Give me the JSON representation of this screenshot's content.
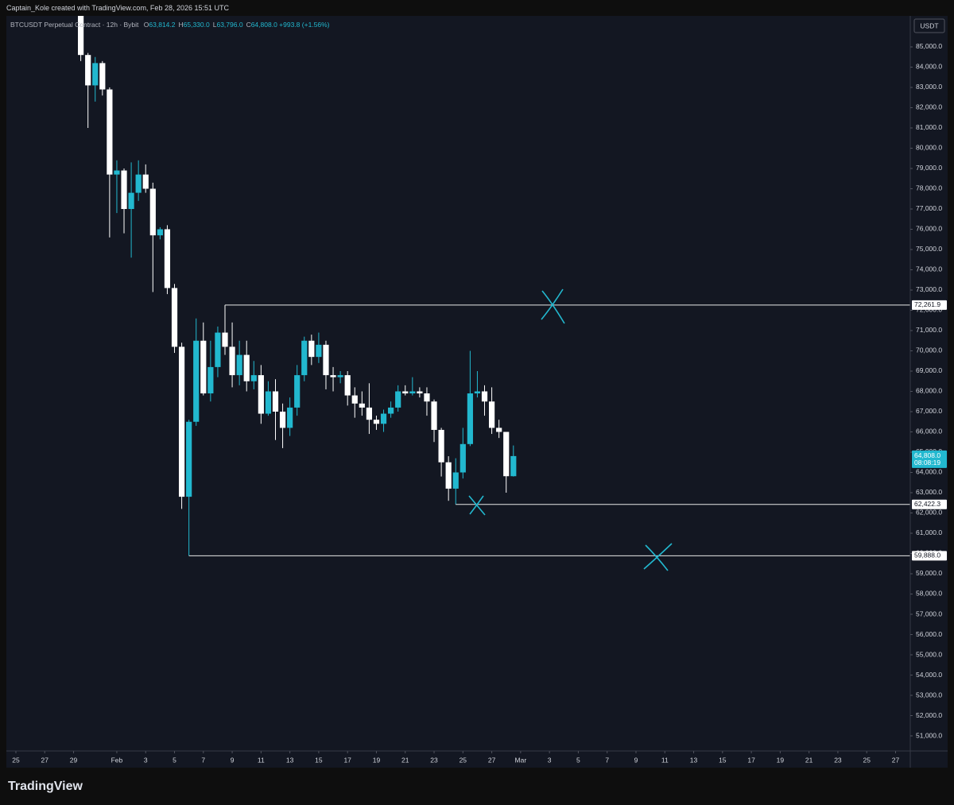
{
  "credit": "Captain_Kole created with TradingView.com, Feb 28, 2026 15:51 UTC",
  "logo": "TradingView",
  "legend": {
    "symbol": "BTCUSDT Perpetual Contract · 12h · Bybit",
    "items": [
      {
        "key": "O",
        "value": "63,814.2"
      },
      {
        "key": "H",
        "value": "65,330.0"
      },
      {
        "key": "L",
        "value": "63,796.0"
      },
      {
        "key": "C",
        "value": "64,808.0"
      }
    ],
    "change": "+993.8 (+1.56%)"
  },
  "chart_data": {
    "type": "candlestick",
    "currency": "USDT",
    "up_color": "#22b8cf",
    "down_color": "#ffffff",
    "background": "#131722",
    "xlim": [
      -1.32,
      124.04
    ],
    "ylim": [
      50255,
      86529
    ],
    "xticks": [
      {
        "value": 0,
        "label": "25"
      },
      {
        "value": 4,
        "label": "27"
      },
      {
        "value": 8,
        "label": "29"
      },
      {
        "value": 14,
        "label": "Feb"
      },
      {
        "value": 18,
        "label": "3"
      },
      {
        "value": 22,
        "label": "5"
      },
      {
        "value": 26,
        "label": "7"
      },
      {
        "value": 30,
        "label": "9"
      },
      {
        "value": 34,
        "label": "11"
      },
      {
        "value": 38,
        "label": "13"
      },
      {
        "value": 42,
        "label": "15"
      },
      {
        "value": 46,
        "label": "17"
      },
      {
        "value": 50,
        "label": "19"
      },
      {
        "value": 54,
        "label": "21"
      },
      {
        "value": 58,
        "label": "23"
      },
      {
        "value": 62,
        "label": "25"
      },
      {
        "value": 66,
        "label": "27"
      },
      {
        "value": 70,
        "label": "Mar"
      },
      {
        "value": 74,
        "label": "3"
      },
      {
        "value": 78,
        "label": "5"
      },
      {
        "value": 82,
        "label": "7"
      },
      {
        "value": 86,
        "label": "9"
      },
      {
        "value": 90,
        "label": "11"
      },
      {
        "value": 94,
        "label": "13"
      },
      {
        "value": 98,
        "label": "15"
      },
      {
        "value": 102,
        "label": "17"
      },
      {
        "value": 106,
        "label": "19"
      },
      {
        "value": 110,
        "label": "21"
      },
      {
        "value": 114,
        "label": "23"
      },
      {
        "value": 118,
        "label": "25"
      },
      {
        "value": 122,
        "label": "27"
      }
    ],
    "yticks": [
      {
        "value": 85000,
        "label": "85,000.0"
      },
      {
        "value": 84000,
        "label": "84,000.0"
      },
      {
        "value": 83000,
        "label": "83,000.0"
      },
      {
        "value": 82000,
        "label": "82,000.0"
      },
      {
        "value": 81000,
        "label": "81,000.0"
      },
      {
        "value": 80000,
        "label": "80,000.0"
      },
      {
        "value": 79000,
        "label": "79,000.0"
      },
      {
        "value": 78000,
        "label": "78,000.0"
      },
      {
        "value": 77000,
        "label": "77,000.0"
      },
      {
        "value": 76000,
        "label": "76,000.0"
      },
      {
        "value": 75000,
        "label": "75,000.0"
      },
      {
        "value": 74000,
        "label": "74,000.0"
      },
      {
        "value": 73000,
        "label": "73,000.0"
      },
      {
        "value": 72000,
        "label": "72,000.0"
      },
      {
        "value": 71000,
        "label": "71,000.0"
      },
      {
        "value": 70000,
        "label": "70,000.0"
      },
      {
        "value": 69000,
        "label": "69,000.0"
      },
      {
        "value": 68000,
        "label": "68,000.0"
      },
      {
        "value": 67000,
        "label": "67,000.0"
      },
      {
        "value": 66000,
        "label": "66,000.0"
      },
      {
        "value": 65000,
        "label": "65,000.0"
      },
      {
        "value": 64000,
        "label": "64,000.0"
      },
      {
        "value": 63000,
        "label": "63,000.0"
      },
      {
        "value": 62000,
        "label": "62,000.0"
      },
      {
        "value": 61000,
        "label": "61,000.0"
      },
      {
        "value": 60000,
        "label": "60,000.0"
      },
      {
        "value": 59000,
        "label": "59,000.0"
      },
      {
        "value": 58000,
        "label": "58,000.0"
      },
      {
        "value": 57000,
        "label": "57,000.0"
      },
      {
        "value": 56000,
        "label": "56,000.0"
      },
      {
        "value": 55000,
        "label": "55,000.0"
      },
      {
        "value": 54000,
        "label": "54,000.0"
      },
      {
        "value": 53000,
        "label": "53,000.0"
      },
      {
        "value": 52000,
        "label": "52,000.0"
      },
      {
        "value": 51000,
        "label": "51,000.0"
      }
    ],
    "x": [
      9,
      10,
      11,
      12,
      13,
      14,
      15,
      16,
      17,
      18,
      19,
      20,
      21,
      22,
      23,
      24,
      25,
      26,
      27,
      28,
      29,
      30,
      31,
      32,
      33,
      34,
      35,
      36,
      37,
      38,
      39,
      40,
      41,
      42,
      43,
      44,
      45,
      46,
      47,
      48,
      49,
      50,
      51,
      52,
      53,
      54,
      55,
      56,
      57,
      58,
      59,
      60,
      61,
      62,
      63,
      64,
      65,
      66,
      67,
      68,
      69
    ],
    "open": [
      86600,
      84600,
      83100,
      84200,
      82900,
      78700,
      78900,
      77000,
      77800,
      78700,
      78000,
      75700,
      76000,
      73100,
      70200,
      62800,
      66500,
      70500,
      67900,
      69200,
      70900,
      70200,
      68800,
      69800,
      68500,
      68800,
      66900,
      68000,
      67000,
      66200,
      67200,
      68800,
      70500,
      69700,
      70300,
      68800,
      68700,
      68800,
      67800,
      67400,
      67200,
      66600,
      66400,
      66900,
      67200,
      68000,
      67900,
      68000,
      67900,
      67500,
      66100,
      64500,
      63200,
      64000,
      65400,
      67900,
      68000,
      67500,
      66200,
      66000,
      63814.2
    ],
    "high": [
      87200,
      84700,
      84500,
      84300,
      83000,
      79400,
      79000,
      79300,
      79400,
      79200,
      78300,
      76100,
      76200,
      73300,
      70400,
      66600,
      71600,
      71400,
      70500,
      71200,
      72261.9,
      71400,
      70500,
      70500,
      69500,
      69300,
      68500,
      68600,
      67400,
      67700,
      69300,
      70700,
      70800,
      70900,
      70500,
      69200,
      69000,
      69000,
      68200,
      68000,
      68400,
      66800,
      67100,
      67500,
      68300,
      68300,
      68700,
      68200,
      68200,
      67600,
      66200,
      64800,
      64700,
      66200,
      70000,
      69000,
      68300,
      68200,
      66600,
      66000,
      65330
    ],
    "low": [
      84300,
      81000,
      82300,
      82600,
      75600,
      76800,
      75800,
      74600,
      77400,
      77800,
      72900,
      75500,
      72800,
      69900,
      62200,
      59888,
      66300,
      67800,
      67500,
      68700,
      69800,
      68200,
      68300,
      68000,
      68100,
      66400,
      66800,
      65600,
      65200,
      65800,
      66800,
      68500,
      69300,
      69400,
      68100,
      68000,
      68400,
      67300,
      66700,
      66800,
      65900,
      66100,
      66000,
      66700,
      67000,
      67800,
      67800,
      67700,
      66800,
      65500,
      63800,
      62600,
      62422.3,
      63700,
      65300,
      67700,
      66800,
      65900,
      65700,
      63000,
      63796
    ],
    "close": [
      84600,
      83100,
      84200,
      82900,
      78700,
      78900,
      77000,
      77800,
      78700,
      78000,
      75700,
      76000,
      73100,
      70200,
      62800,
      66500,
      70500,
      67900,
      69200,
      70900,
      70200,
      68800,
      69800,
      68500,
      68800,
      66900,
      68000,
      67000,
      66200,
      67200,
      68800,
      70500,
      69700,
      70300,
      68800,
      68700,
      68800,
      67800,
      67400,
      67200,
      66600,
      66400,
      66900,
      67200,
      68000,
      67900,
      68000,
      67900,
      67500,
      66100,
      64500,
      63200,
      64000,
      65400,
      67900,
      68000,
      67500,
      66200,
      66000,
      63814.2,
      64808
    ],
    "levels": [
      {
        "value": 72261.9,
        "label": "72,261.9",
        "start": 29
      },
      {
        "value": 62422.3,
        "label": "62,422.3",
        "start": 61
      },
      {
        "value": 59888,
        "label": "59,888.0",
        "start": 24
      }
    ],
    "last_price": {
      "value": 64808,
      "label": "64,808.0",
      "countdown": "08:08:19"
    }
  }
}
